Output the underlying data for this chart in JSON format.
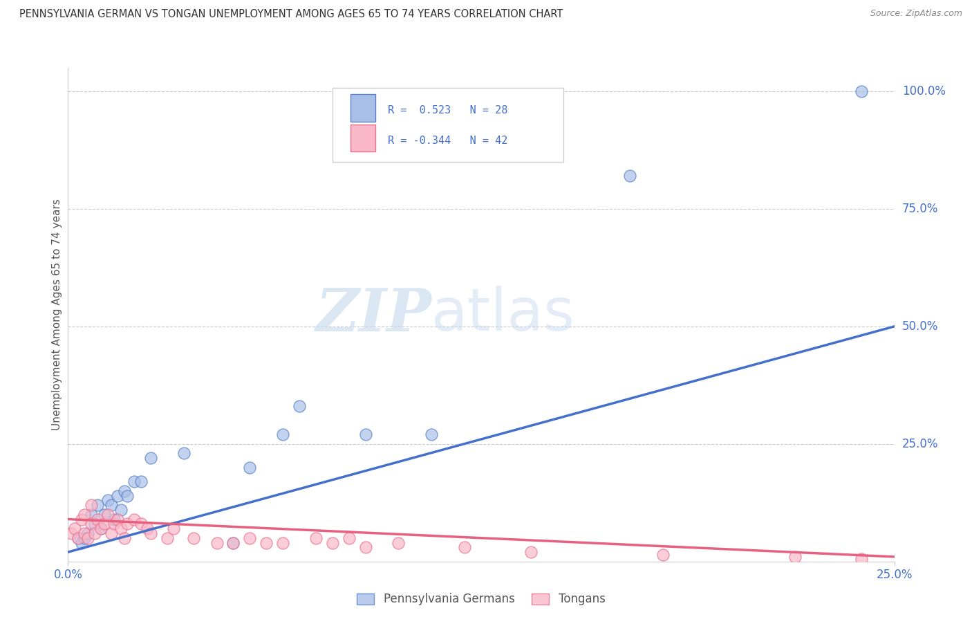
{
  "title": "PENNSYLVANIA GERMAN VS TONGAN UNEMPLOYMENT AMONG AGES 65 TO 74 YEARS CORRELATION CHART",
  "source": "Source: ZipAtlas.com",
  "ylabel_label": "Unemployment Among Ages 65 to 74 years",
  "xlim": [
    0.0,
    0.25
  ],
  "ylim": [
    0.0,
    1.05
  ],
  "ytick_labels_right": [
    "100.0%",
    "75.0%",
    "50.0%",
    "25.0%"
  ],
  "ytick_vals_right": [
    1.0,
    0.75,
    0.5,
    0.25
  ],
  "grid_color": "#cccccc",
  "background_color": "#ffffff",
  "watermark_zip": "ZIP",
  "watermark_atlas": "atlas",
  "legend_R1": "R =  0.523",
  "legend_N1": "N = 28",
  "legend_R2": "R = -0.344",
  "legend_N2": "N = 42",
  "blue_face": "#aabfe8",
  "blue_edge": "#5580c8",
  "pink_face": "#f9b8c8",
  "pink_edge": "#e87090",
  "blue_line_color": "#4470cc",
  "pink_line_color": "#e86080",
  "title_color": "#333333",
  "tick_color": "#4470cc",
  "label_color": "#555555",
  "pg_scatter_x": [
    0.003,
    0.004,
    0.005,
    0.006,
    0.007,
    0.008,
    0.009,
    0.01,
    0.011,
    0.012,
    0.013,
    0.014,
    0.015,
    0.016,
    0.017,
    0.018,
    0.02,
    0.022,
    0.025,
    0.035,
    0.05,
    0.055,
    0.065,
    0.07,
    0.09,
    0.11,
    0.17,
    0.24
  ],
  "pg_scatter_y": [
    0.05,
    0.04,
    0.05,
    0.06,
    0.1,
    0.08,
    0.12,
    0.07,
    0.1,
    0.13,
    0.12,
    0.09,
    0.14,
    0.11,
    0.15,
    0.14,
    0.17,
    0.17,
    0.22,
    0.23,
    0.04,
    0.2,
    0.27,
    0.33,
    0.27,
    0.27,
    0.82,
    1.0
  ],
  "tg_scatter_x": [
    0.001,
    0.002,
    0.003,
    0.004,
    0.005,
    0.005,
    0.006,
    0.007,
    0.007,
    0.008,
    0.009,
    0.01,
    0.011,
    0.012,
    0.013,
    0.014,
    0.015,
    0.016,
    0.017,
    0.018,
    0.02,
    0.022,
    0.024,
    0.025,
    0.03,
    0.032,
    0.038,
    0.045,
    0.05,
    0.055,
    0.06,
    0.065,
    0.075,
    0.08,
    0.085,
    0.09,
    0.1,
    0.12,
    0.14,
    0.18,
    0.22,
    0.24
  ],
  "tg_scatter_y": [
    0.06,
    0.07,
    0.05,
    0.09,
    0.06,
    0.1,
    0.05,
    0.08,
    0.12,
    0.06,
    0.09,
    0.07,
    0.08,
    0.1,
    0.06,
    0.08,
    0.09,
    0.07,
    0.05,
    0.08,
    0.09,
    0.08,
    0.07,
    0.06,
    0.05,
    0.07,
    0.05,
    0.04,
    0.04,
    0.05,
    0.04,
    0.04,
    0.05,
    0.04,
    0.05,
    0.03,
    0.04,
    0.03,
    0.02,
    0.015,
    0.01,
    0.005
  ],
  "pg_line_x": [
    0.0,
    0.25
  ],
  "pg_line_y": [
    0.02,
    0.5
  ],
  "tg_line_x": [
    0.0,
    0.25
  ],
  "tg_line_y": [
    0.09,
    0.01
  ]
}
